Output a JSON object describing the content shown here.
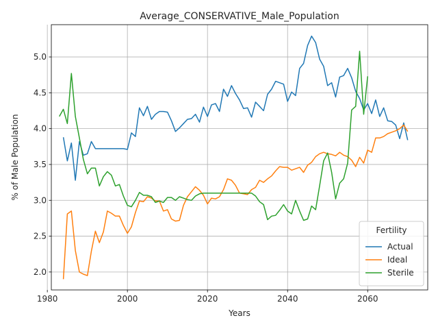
{
  "chart_data": {
    "type": "line",
    "title": "Average_CONSERVATIVE_Male_Population",
    "xlabel": "Years",
    "ylabel": "% of Male Population",
    "xlim": [
      1981,
      2075
    ],
    "ylim": [
      1.75,
      5.45
    ],
    "xticks": [
      1980,
      2000,
      2020,
      2040,
      2060
    ],
    "yticks": [
      2.0,
      2.5,
      3.0,
      3.5,
      4.0,
      4.5,
      5.0
    ],
    "grid": true,
    "legend": {
      "title": "Fertility",
      "position": "bottom-right"
    },
    "series": [
      {
        "name": "Actual",
        "color": "#1f77b4",
        "x": [
          1984,
          1985,
          1986,
          1987,
          1988,
          1989,
          1990,
          1991,
          1992,
          1993,
          1994,
          1995,
          1996,
          1997,
          1998,
          1999,
          2000,
          2001,
          2002,
          2003,
          2004,
          2005,
          2006,
          2007,
          2008,
          2009,
          2010,
          2011,
          2012,
          2013,
          2014,
          2015,
          2016,
          2017,
          2018,
          2019,
          2020,
          2021,
          2022,
          2023,
          2024,
          2025,
          2026,
          2027,
          2028,
          2029,
          2030,
          2031,
          2032,
          2033,
          2034,
          2035,
          2036,
          2037,
          2038,
          2039,
          2040,
          2041,
          2042,
          2043,
          2044,
          2045,
          2046,
          2047,
          2048,
          2049,
          2050,
          2051,
          2052,
          2053,
          2054,
          2055,
          2056,
          2057,
          2058,
          2059,
          2060,
          2061,
          2062,
          2063,
          2064,
          2065,
          2066,
          2067,
          2068,
          2069,
          2070
        ],
        "values": [
          3.88,
          3.55,
          3.8,
          3.28,
          3.82,
          3.63,
          3.65,
          3.82,
          3.72,
          3.72,
          3.72,
          3.72,
          3.72,
          3.72,
          3.72,
          3.72,
          3.71,
          3.94,
          3.89,
          4.29,
          4.18,
          4.31,
          4.13,
          4.2,
          4.24,
          4.24,
          4.23,
          4.11,
          3.96,
          4.01,
          4.07,
          4.13,
          4.14,
          4.2,
          4.09,
          4.3,
          4.17,
          4.33,
          4.35,
          4.24,
          4.55,
          4.45,
          4.6,
          4.49,
          4.4,
          4.28,
          4.29,
          4.16,
          4.37,
          4.31,
          4.25,
          4.48,
          4.55,
          4.66,
          4.64,
          4.62,
          4.38,
          4.51,
          4.46,
          4.84,
          4.91,
          5.16,
          5.29,
          5.2,
          4.97,
          4.87,
          4.6,
          4.64,
          4.44,
          4.72,
          4.74,
          4.84,
          4.71,
          4.52,
          4.42,
          4.26,
          4.35,
          4.21,
          4.4,
          4.17,
          4.29,
          4.11,
          4.1,
          4.05,
          3.86,
          4.08,
          3.84
        ]
      },
      {
        "name": "Ideal",
        "color": "#ff7f0e",
        "x": [
          1984,
          1985,
          1986,
          1987,
          1988,
          1989,
          1990,
          1991,
          1992,
          1993,
          1994,
          1995,
          1996,
          1997,
          1998,
          1999,
          2000,
          2001,
          2002,
          2003,
          2004,
          2005,
          2006,
          2007,
          2008,
          2009,
          2010,
          2011,
          2012,
          2013,
          2014,
          2015,
          2016,
          2017,
          2018,
          2019,
          2020,
          2021,
          2022,
          2023,
          2024,
          2025,
          2026,
          2027,
          2028,
          2029,
          2030,
          2031,
          2032,
          2033,
          2034,
          2035,
          2036,
          2037,
          2038,
          2039,
          2040,
          2041,
          2042,
          2043,
          2044,
          2045,
          2046,
          2047,
          2048,
          2049,
          2050,
          2051,
          2052,
          2053,
          2054,
          2055,
          2056,
          2057,
          2058,
          2059,
          2060,
          2061,
          2062,
          2063,
          2064,
          2065,
          2066,
          2067,
          2068,
          2069,
          2070
        ],
        "values": [
          1.9,
          2.81,
          2.85,
          2.3,
          2.0,
          1.97,
          1.95,
          2.29,
          2.57,
          2.41,
          2.56,
          2.85,
          2.82,
          2.78,
          2.78,
          2.65,
          2.54,
          2.63,
          2.83,
          2.99,
          2.98,
          3.05,
          3.03,
          2.99,
          2.99,
          2.85,
          2.87,
          2.74,
          2.71,
          2.72,
          2.93,
          3.05,
          3.12,
          3.19,
          3.14,
          3.07,
          2.95,
          3.03,
          3.02,
          3.05,
          3.15,
          3.3,
          3.28,
          3.21,
          3.1,
          3.09,
          3.08,
          3.15,
          3.18,
          3.28,
          3.25,
          3.3,
          3.34,
          3.41,
          3.47,
          3.46,
          3.46,
          3.42,
          3.44,
          3.46,
          3.39,
          3.49,
          3.53,
          3.61,
          3.65,
          3.67,
          3.65,
          3.64,
          3.62,
          3.67,
          3.63,
          3.61,
          3.56,
          3.47,
          3.6,
          3.52,
          3.7,
          3.67,
          3.87,
          3.87,
          3.89,
          3.93,
          3.95,
          3.97,
          4.0,
          4.05,
          3.96
        ]
      },
      {
        "name": "Sterile",
        "color": "#2ca02c",
        "x": [
          1983,
          1984,
          1985,
          1986,
          1987,
          1988,
          1989,
          1990,
          1991,
          1992,
          1993,
          1994,
          1995,
          1996,
          1997,
          1998,
          1999,
          2000,
          2001,
          2002,
          2003,
          2004,
          2005,
          2006,
          2007,
          2008,
          2009,
          2010,
          2011,
          2012,
          2013,
          2014,
          2015,
          2016,
          2017,
          2018,
          2019,
          2020,
          2021,
          2022,
          2023,
          2024,
          2025,
          2026,
          2027,
          2028,
          2029,
          2030,
          2031,
          2032,
          2033,
          2034,
          2035,
          2036,
          2037,
          2038,
          2039,
          2040,
          2041,
          2042,
          2043,
          2044,
          2045,
          2046,
          2047,
          2048,
          2049,
          2050,
          2051,
          2052,
          2053,
          2054,
          2055,
          2056,
          2057,
          2058,
          2059,
          2060
        ],
        "values": [
          4.17,
          4.27,
          4.07,
          4.77,
          4.17,
          3.87,
          3.57,
          3.37,
          3.45,
          3.45,
          3.2,
          3.33,
          3.4,
          3.35,
          3.2,
          3.22,
          3.06,
          2.93,
          2.91,
          3.0,
          3.11,
          3.07,
          3.07,
          3.05,
          2.97,
          2.99,
          2.97,
          3.04,
          3.04,
          3.0,
          3.05,
          3.03,
          3.01,
          3.0,
          3.06,
          3.09,
          3.1,
          3.1,
          3.1,
          3.1,
          3.1,
          3.1,
          3.1,
          3.1,
          3.1,
          3.1,
          3.1,
          3.1,
          3.1,
          3.06,
          2.98,
          2.94,
          2.73,
          2.78,
          2.79,
          2.86,
          2.94,
          2.85,
          2.81,
          3.0,
          2.85,
          2.72,
          2.74,
          2.92,
          2.87,
          3.2,
          3.55,
          3.66,
          3.39,
          3.02,
          3.24,
          3.3,
          3.52,
          4.26,
          4.31,
          5.08,
          4.2,
          4.73
        ]
      }
    ]
  }
}
